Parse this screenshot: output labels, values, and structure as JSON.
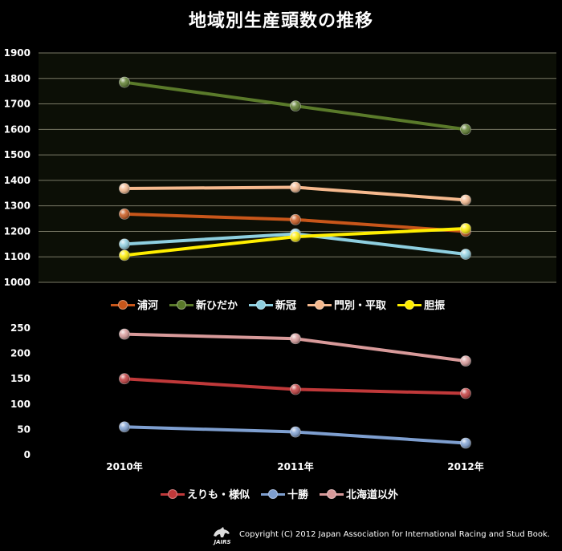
{
  "title": "地域別生産頭数の推移",
  "footer": {
    "copyright": "Copyright (C) 2012 Japan Association for International Racing and Stud Book.",
    "logo_text": "JAIRS"
  },
  "chart_data": [
    {
      "type": "line",
      "categories": [
        "2010年",
        "2011年",
        "2012年"
      ],
      "ylim": [
        1000,
        1900
      ],
      "yticks": [
        1000,
        1100,
        1200,
        1300,
        1400,
        1500,
        1600,
        1700,
        1800,
        1900
      ],
      "legend_position": "bottom",
      "grid": true,
      "series": [
        {
          "name": "浦河",
          "color": "#c8561a",
          "values": [
            1268,
            1246,
            1200
          ]
        },
        {
          "name": "新ひだか",
          "color": "#5a7a2a",
          "values": [
            1785,
            1692,
            1600
          ]
        },
        {
          "name": "新冠",
          "color": "#8ecfe0",
          "values": [
            1150,
            1190,
            1110
          ]
        },
        {
          "name": "門別・平取",
          "color": "#f5b98e",
          "values": [
            1368,
            1373,
            1323
          ]
        },
        {
          "name": "胆振",
          "color": "#ffee00",
          "values": [
            1106,
            1179,
            1211
          ]
        }
      ]
    },
    {
      "type": "line",
      "categories": [
        "2010年",
        "2011年",
        "2012年"
      ],
      "ylim": [
        0,
        250
      ],
      "yticks": [
        0,
        50,
        100,
        150,
        200,
        250
      ],
      "legend_position": "bottom",
      "grid": false,
      "series": [
        {
          "name": "えりも・様似",
          "color": "#c0393a",
          "values": [
            150,
            129,
            121
          ]
        },
        {
          "name": "十勝",
          "color": "#7e9fd0",
          "values": [
            55,
            45,
            23
          ]
        },
        {
          "name": "北海道以外",
          "color": "#d89a9a",
          "values": [
            238,
            229,
            185
          ]
        }
      ]
    }
  ]
}
